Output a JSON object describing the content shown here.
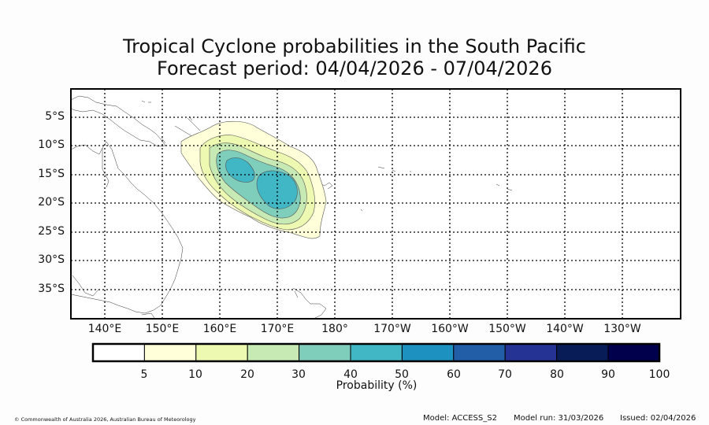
{
  "title_line1": "Tropical Cyclone probabilities in the South Pacific",
  "title_line2": "Forecast period: 04/04/2026 - 07/04/2026",
  "lat_labels": [
    "5°S",
    "10°S",
    "15°S",
    "20°S",
    "25°S",
    "30°S",
    "35°S"
  ],
  "lon_labels": [
    "140°E",
    "150°E",
    "160°E",
    "170°E",
    "180°",
    "170°W",
    "160°W",
    "150°W",
    "140°W",
    "130°W"
  ],
  "colorbar": {
    "label": "Probability (%)",
    "ticks": [
      "5",
      "10",
      "20",
      "30",
      "40",
      "50",
      "60",
      "70",
      "80",
      "90",
      "100"
    ],
    "colors": [
      "#ffffff",
      "#ffffd9",
      "#edf8b1",
      "#c7e9b4",
      "#7fcdbb",
      "#41b6c4",
      "#1d91c0",
      "#225ea8",
      "#253494",
      "#081d58",
      "#00004d"
    ]
  },
  "probability_levels": {
    "5": "#ffffd9",
    "10": "#edf8b1",
    "20": "#c7e9b4",
    "30": "#7fcdbb",
    "40": "#41b6c4"
  },
  "footer": {
    "copyright": "© Commonwealth of Australia 2026, Australian Bureau of Meteorology",
    "model": "Model: ACCESS_S2",
    "model_run": "Model run: 31/03/2026",
    "issued": "Issued: 02/04/2026"
  }
}
